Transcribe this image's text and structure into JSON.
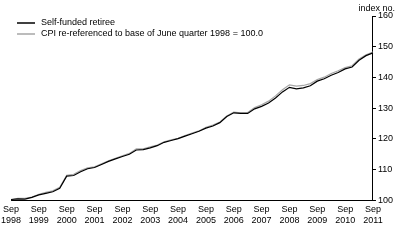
{
  "chart_data": {
    "type": "line",
    "y_label": "index no.",
    "categories": [
      "Sep 1998",
      null,
      null,
      null,
      "Sep 1999",
      null,
      null,
      null,
      "Sep 2000",
      null,
      null,
      null,
      "Sep 2001",
      null,
      null,
      null,
      "Sep 2002",
      null,
      null,
      null,
      "Sep 2003",
      null,
      null,
      null,
      "Sep 2004",
      null,
      null,
      null,
      "Sep 2005",
      null,
      null,
      null,
      "Sep 2006",
      null,
      null,
      null,
      "Sep 2007",
      null,
      null,
      null,
      "Sep 2008",
      null,
      null,
      null,
      "Sep 2009",
      null,
      null,
      null,
      "Sep 2010",
      null,
      null,
      null,
      "Sep 2011"
    ],
    "series": [
      {
        "name": "Self-funded retiree",
        "color": "#000000",
        "values": [
          100.3,
          100.5,
          100.4,
          101.0,
          101.8,
          102.3,
          102.8,
          103.9,
          107.9,
          108.1,
          109.3,
          110.3,
          110.7,
          111.7,
          112.7,
          113.5,
          114.3,
          115.0,
          116.4,
          116.5,
          117.1,
          117.8,
          118.9,
          119.5,
          120.1,
          120.9,
          121.7,
          122.5,
          123.5,
          124.2,
          125.3,
          127.3,
          128.5,
          128.3,
          128.3,
          129.8,
          130.6,
          131.7,
          133.3,
          135.3,
          136.8,
          136.3,
          136.6,
          137.3,
          138.8,
          139.6,
          140.7,
          141.6,
          142.8,
          143.4,
          145.6,
          147.1,
          148.0
        ]
      },
      {
        "name": "CPI re-referenced to base of June quarter 1998 = 100.0",
        "color": "#a6a6a6",
        "values": [
          100.2,
          100.7,
          100.7,
          101.1,
          102.0,
          102.6,
          103.1,
          104.3,
          108.2,
          108.5,
          109.7,
          110.6,
          110.9,
          111.9,
          112.9,
          113.7,
          114.5,
          115.3,
          116.8,
          116.8,
          117.4,
          118.0,
          119.1,
          119.7,
          120.2,
          121.1,
          121.9,
          122.6,
          123.8,
          124.5,
          125.5,
          127.5,
          128.7,
          128.5,
          128.6,
          130.2,
          131.1,
          132.3,
          134.0,
          136.0,
          137.6,
          137.2,
          137.4,
          138.0,
          139.3,
          140.1,
          141.3,
          142.2,
          143.2,
          143.8,
          146.0,
          147.4,
          148.3
        ]
      }
    ],
    "ylim": [
      100,
      160
    ],
    "yticks": [
      100,
      110,
      120,
      130,
      140,
      150,
      160
    ],
    "grid": false
  }
}
